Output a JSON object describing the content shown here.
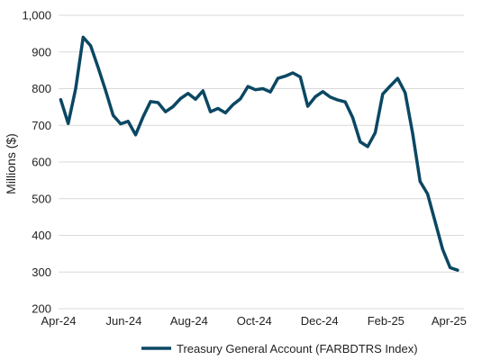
{
  "chart_data": {
    "type": "line",
    "title": "",
    "xlabel": "",
    "ylabel": "Millions ($)",
    "ylim": [
      200,
      1000
    ],
    "yticks": [
      200,
      300,
      400,
      500,
      600,
      700,
      800,
      900,
      1000
    ],
    "ytick_labels": [
      "200",
      "300",
      "400",
      "500",
      "600",
      "700",
      "800",
      "900",
      "1,000"
    ],
    "xticks": [
      "2024-04-01",
      "2024-06-01",
      "2024-08-01",
      "2024-10-01",
      "2024-12-01",
      "2025-02-01",
      "2025-04-01"
    ],
    "xtick_labels": [
      "Apr-24",
      "Jun-24",
      "Aug-24",
      "Oct-24",
      "Dec-24",
      "Feb-25",
      "Apr-25"
    ],
    "xlim": [
      "2024-04-01",
      "2025-04-15"
    ],
    "grid": true,
    "legend_position": "bottom",
    "colors": {
      "series": "#0b4763",
      "grid": "#d9d9d9",
      "text": "#222222"
    },
    "series": [
      {
        "name": "Treasury General Account (FARBDTRS Index)",
        "x": [
          "2024-04-03",
          "2024-04-10",
          "2024-04-17",
          "2024-04-24",
          "2024-05-01",
          "2024-05-08",
          "2024-05-15",
          "2024-05-22",
          "2024-05-29",
          "2024-06-05",
          "2024-06-12",
          "2024-06-19",
          "2024-06-26",
          "2024-07-03",
          "2024-07-10",
          "2024-07-17",
          "2024-07-24",
          "2024-07-31",
          "2024-08-07",
          "2024-08-14",
          "2024-08-21",
          "2024-08-28",
          "2024-09-04",
          "2024-09-11",
          "2024-09-18",
          "2024-09-25",
          "2024-10-02",
          "2024-10-09",
          "2024-10-16",
          "2024-10-23",
          "2024-10-30",
          "2024-11-06",
          "2024-11-13",
          "2024-11-20",
          "2024-11-27",
          "2024-12-04",
          "2024-12-11",
          "2024-12-18",
          "2024-12-25",
          "2025-01-01",
          "2025-01-08",
          "2025-01-15",
          "2025-01-22",
          "2025-01-29",
          "2025-02-05",
          "2025-02-12",
          "2025-02-19",
          "2025-02-26",
          "2025-03-05",
          "2025-03-12",
          "2025-03-19",
          "2025-03-26",
          "2025-04-02",
          "2025-04-09"
        ],
        "values": [
          770,
          705,
          800,
          940,
          917,
          858,
          795,
          727,
          704,
          711,
          674,
          723,
          765,
          762,
          737,
          751,
          773,
          787,
          771,
          794,
          737,
          746,
          734,
          756,
          772,
          806,
          797,
          800,
          791,
          828,
          834,
          843,
          832,
          752,
          778,
          792,
          777,
          769,
          764,
          721,
          655,
          642,
          680,
          785,
          807,
          828,
          789,
          678,
          547,
          513,
          438,
          362,
          312,
          305
        ]
      }
    ]
  }
}
